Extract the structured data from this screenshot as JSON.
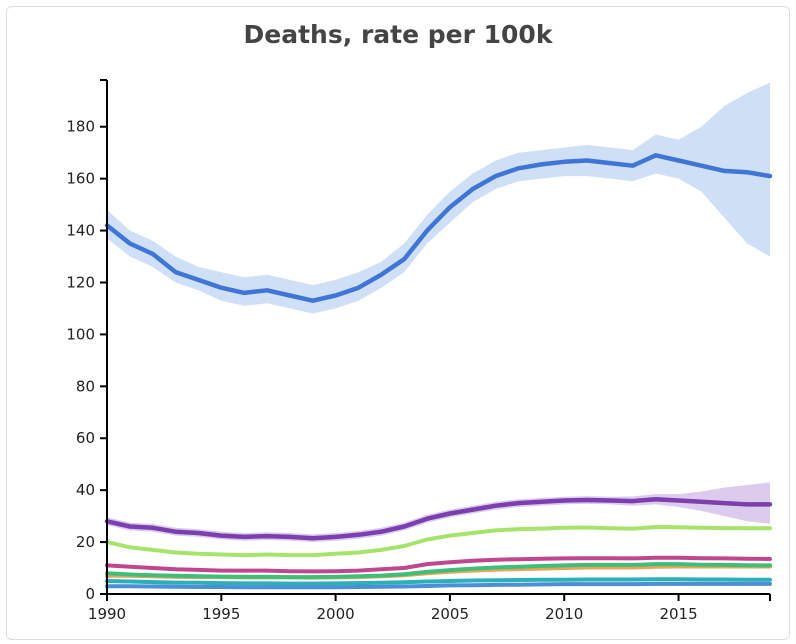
{
  "chart_data": {
    "type": "line",
    "title": "Deaths, rate per 100k",
    "xlabel": "",
    "ylabel": "",
    "xlim": [
      1990,
      2019
    ],
    "ylim": [
      0,
      198
    ],
    "xticks": [
      1990,
      1995,
      2000,
      2005,
      2010,
      2015
    ],
    "yticks": [
      0,
      20,
      40,
      60,
      80,
      100,
      120,
      140,
      160,
      180
    ],
    "grid": false,
    "legend": "none",
    "x": [
      1990,
      1991,
      1992,
      1993,
      1994,
      1995,
      1996,
      1997,
      1998,
      1999,
      2000,
      2001,
      2002,
      2003,
      2004,
      2005,
      2006,
      2007,
      2008,
      2009,
      2010,
      2011,
      2012,
      2013,
      2014,
      2015,
      2016,
      2017,
      2018,
      2019
    ],
    "series": [
      {
        "color": "#3f76d6",
        "band_color": "#cfdff6",
        "values": [
          142,
          135,
          131,
          124,
          121,
          118,
          116,
          117,
          115,
          113,
          115,
          118,
          123,
          129,
          140,
          149,
          156,
          161,
          164,
          165.5,
          166.5,
          167,
          166,
          165,
          169,
          167,
          165,
          163,
          162.5,
          161
        ],
        "lower": [
          137,
          130,
          126,
          120,
          117,
          113,
          111,
          112,
          110,
          108,
          110,
          113,
          118,
          124,
          135,
          143,
          151,
          156,
          159,
          160,
          161,
          161,
          160,
          159,
          162,
          160,
          155,
          145,
          135,
          130
        ],
        "upper": [
          148,
          140,
          136,
          130,
          126,
          124,
          122,
          123,
          121,
          119,
          121,
          124,
          128,
          135,
          146,
          155,
          162,
          167,
          170,
          171,
          172,
          173,
          172,
          171,
          177,
          175,
          180,
          188,
          193,
          197
        ]
      },
      {
        "color": "#7b3fb0",
        "band_color": "#ddcbee",
        "values": [
          28,
          26,
          25.5,
          24,
          23.5,
          22.5,
          22,
          22.3,
          22,
          21.5,
          22,
          22.8,
          24,
          26,
          29,
          31,
          32.5,
          34,
          35,
          35.5,
          36,
          36.2,
          36,
          35.8,
          36.5,
          36,
          35.5,
          35,
          34.5,
          34.5
        ],
        "lower": [
          26.5,
          24.5,
          24,
          22.5,
          22,
          21,
          20.5,
          20.8,
          20.5,
          20,
          20.5,
          21.3,
          22.5,
          24.5,
          27.5,
          29.5,
          31,
          32.5,
          33.5,
          34,
          34.5,
          34.7,
          34.5,
          34,
          34.5,
          33.5,
          32,
          30,
          28,
          27
        ],
        "upper": [
          29.5,
          27.5,
          27,
          25.5,
          25,
          24,
          23.5,
          23.8,
          23.5,
          23,
          23.5,
          24.3,
          25.5,
          27.5,
          30.5,
          32.5,
          34,
          35.5,
          36.5,
          37,
          37.5,
          37.7,
          37.5,
          37.6,
          38.5,
          38.5,
          39.5,
          41,
          42,
          43
        ]
      },
      {
        "color": "#a6e36a",
        "values": [
          20,
          18,
          17,
          16,
          15.5,
          15.2,
          15,
          15.2,
          15,
          15,
          15.5,
          16,
          17,
          18.5,
          21,
          22.5,
          23.5,
          24.5,
          25,
          25.2,
          25.5,
          25.6,
          25.3,
          25.2,
          25.8,
          25.7,
          25.5,
          25.4,
          25.3,
          25.3
        ]
      },
      {
        "color": "#c0478f",
        "values": [
          11,
          10.5,
          10,
          9.5,
          9.3,
          9,
          9,
          9,
          8.8,
          8.7,
          8.8,
          9,
          9.5,
          10,
          11.5,
          12.2,
          12.8,
          13.2,
          13.4,
          13.6,
          13.7,
          13.8,
          13.8,
          13.7,
          14,
          14,
          13.8,
          13.7,
          13.6,
          13.5
        ]
      },
      {
        "color": "#e8a45a",
        "values": [
          7,
          7,
          6.8,
          6.6,
          6.5,
          6.5,
          6.4,
          6.4,
          6.4,
          6.3,
          6.4,
          6.5,
          6.8,
          7.2,
          8,
          8.6,
          9,
          9.4,
          9.6,
          9.8,
          10,
          10.2,
          10.2,
          10.2,
          10.5,
          10.6,
          10.6,
          10.6,
          10.6,
          10.6
        ]
      },
      {
        "color": "#3dbf7a",
        "values": [
          8,
          7.5,
          7.2,
          7,
          6.8,
          6.7,
          6.6,
          6.6,
          6.5,
          6.5,
          6.6,
          6.8,
          7.1,
          7.6,
          8.5,
          9.2,
          9.8,
          10.2,
          10.5,
          10.8,
          11,
          11.2,
          11.2,
          11.2,
          11.5,
          11.5,
          11.3,
          11.2,
          11.1,
          11
        ]
      },
      {
        "color": "#2ab0b8",
        "values": [
          5,
          4.8,
          4.6,
          4.4,
          4.3,
          4.2,
          4.1,
          4.1,
          4,
          4,
          4.1,
          4.2,
          4.3,
          4.5,
          4.8,
          5,
          5.2,
          5.3,
          5.4,
          5.5,
          5.5,
          5.6,
          5.6,
          5.6,
          5.7,
          5.7,
          5.6,
          5.6,
          5.5,
          5.5
        ]
      },
      {
        "color": "#4a8fd8",
        "values": [
          3,
          3,
          2.9,
          2.8,
          2.7,
          2.7,
          2.6,
          2.6,
          2.6,
          2.6,
          2.6,
          2.7,
          2.8,
          2.9,
          3.1,
          3.3,
          3.4,
          3.5,
          3.6,
          3.7,
          3.8,
          3.8,
          3.8,
          3.8,
          3.9,
          3.9,
          3.9,
          3.9,
          3.9,
          3.9
        ]
      }
    ]
  }
}
